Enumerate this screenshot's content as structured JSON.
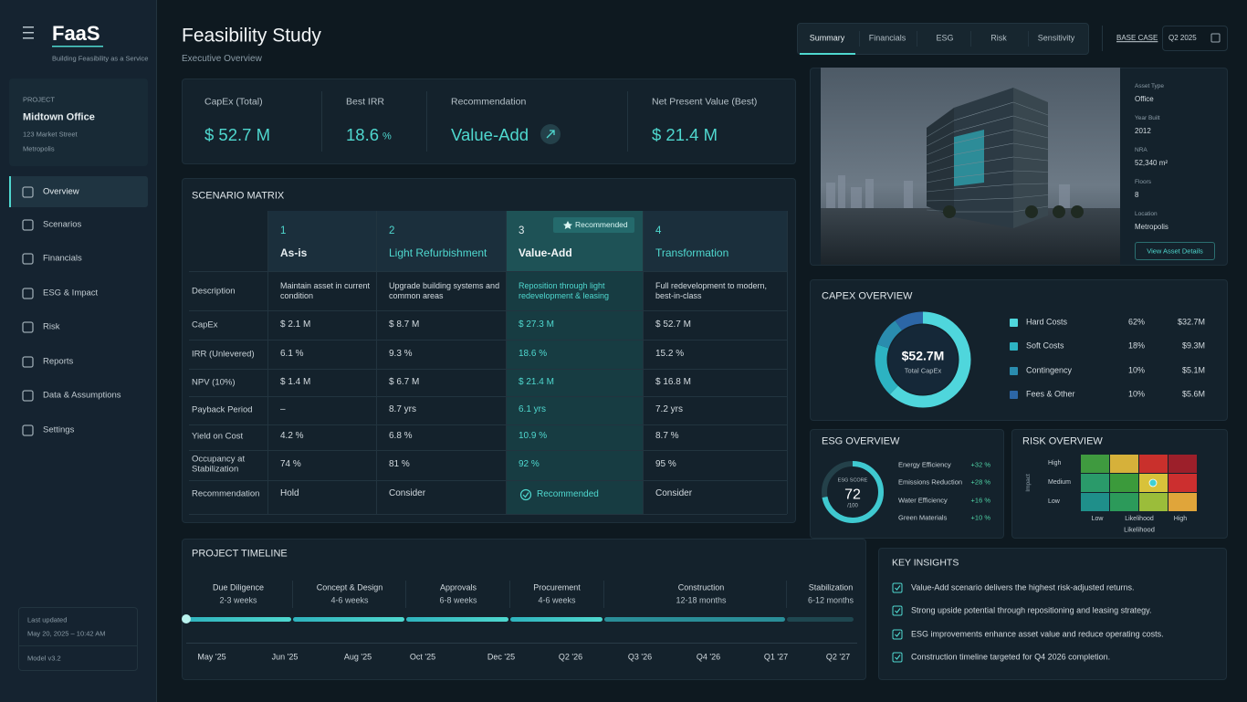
{
  "sidebar": {
    "logo": "FaaS",
    "tagline": "Building Feasibility as a Service",
    "project": {
      "label": "PROJECT",
      "name": "Midtown Office",
      "address": "123 Market Street",
      "city": "Metropolis"
    },
    "nav": [
      "Overview",
      "Scenarios",
      "Financials",
      "ESG & Impact",
      "Risk",
      "Reports",
      "Data & Assumptions",
      "Settings"
    ],
    "footer": {
      "label": "Last updated",
      "date": "May 20, 2025 – 10:42 AM",
      "version": "Model v3.2"
    }
  },
  "header": {
    "title": "Feasibility Study",
    "subtitle": "Executive Overview",
    "tabs": [
      "Summary",
      "Financials",
      "ESG",
      "Risk",
      "Sensitivity"
    ],
    "case": "BASE CASE",
    "period": "Q2 2025"
  },
  "kpis": [
    {
      "label": "CapEx (Total)",
      "value": "$ 52.7 M"
    },
    {
      "label": "Best IRR",
      "value": "18.6",
      "unit": "%"
    },
    {
      "label": "Recommendation",
      "value": "Value-Add"
    },
    {
      "label": "Net Present Value (Best)",
      "value": "$ 21.4 M"
    }
  ],
  "scenario_matrix": {
    "title": "SCENARIO MATRIX",
    "badge": "Recommended",
    "columns": [
      {
        "number": "1",
        "name": "As-is"
      },
      {
        "number": "2",
        "name": "Light Refurbishment"
      },
      {
        "number": "3",
        "name": "Value-Add"
      },
      {
        "number": "4",
        "name": "Transformation"
      }
    ],
    "rows": [
      {
        "label": "Description",
        "cells": [
          "Maintain asset in current condition",
          "Upgrade building systems and common areas",
          "Reposition through light redevelopment & leasing",
          "Full redevelopment to modern, best-in-class"
        ]
      },
      {
        "label": "CapEx",
        "cells": [
          "$ 2.1 M",
          "$ 8.7 M",
          "$ 27.3 M",
          "$ 52.7 M"
        ]
      },
      {
        "label": "IRR (Unlevered)",
        "cells": [
          "6.1 %",
          "9.3 %",
          "18.6 %",
          "15.2 %"
        ]
      },
      {
        "label": "NPV (10%)",
        "cells": [
          "$ 1.4 M",
          "$ 6.7 M",
          "$ 21.4 M",
          "$ 16.8 M"
        ]
      },
      {
        "label": "Payback Period",
        "cells": [
          "–",
          "8.7 yrs",
          "6.1 yrs",
          "7.2 yrs"
        ]
      },
      {
        "label": "Yield on Cost",
        "cells": [
          "4.2 %",
          "6.8 %",
          "10.9 %",
          "8.7 %"
        ]
      },
      {
        "label": "Occupancy at Stabilization",
        "cells": [
          "74 %",
          "81 %",
          "92 %",
          "95 %"
        ]
      },
      {
        "label": "Recommendation",
        "cells": [
          "Hold",
          "Consider",
          "Recommended",
          "Consider"
        ]
      }
    ]
  },
  "asset": {
    "details": [
      {
        "label": "Asset Type",
        "value": "Office"
      },
      {
        "label": "Year Built",
        "value": "2012"
      },
      {
        "label": "NRA",
        "value": "52,340 m²"
      },
      {
        "label": "Floors",
        "value": "8"
      },
      {
        "label": "Location",
        "value": "Metropolis"
      }
    ],
    "button": "View Asset Details"
  },
  "capex_overview": {
    "title": "CAPEX OVERVIEW",
    "total": "$52.7M",
    "total_label": "Total CapEx",
    "items": [
      {
        "name": "Hard Costs",
        "percent": 62,
        "percent_label": "62%",
        "amount": "$32.7M",
        "color": "#4fd6dc"
      },
      {
        "name": "Soft Costs",
        "percent": 18,
        "percent_label": "18%",
        "amount": "$9.3M",
        "color": "#2db3c2"
      },
      {
        "name": "Contingency",
        "percent": 10,
        "percent_label": "10%",
        "amount": "$5.1M",
        "color": "#2a8cae"
      },
      {
        "name": "Fees & Other",
        "percent": 10,
        "percent_label": "10%",
        "amount": "$5.6M",
        "color": "#2c66a6"
      }
    ]
  },
  "esg_overview": {
    "title": "ESG OVERVIEW",
    "score_label": "ESG SCORE",
    "score": 72,
    "score_max": 100,
    "score_max_label": "/100",
    "items": [
      {
        "name": "Energy Efficiency",
        "value": "+32 %"
      },
      {
        "name": "Emissions Reduction",
        "value": "+28 %"
      },
      {
        "name": "Water Efficiency",
        "value": "+16 %"
      },
      {
        "name": "Green Materials",
        "value": "+10 %"
      }
    ]
  },
  "risk_overview": {
    "title": "RISK OVERVIEW",
    "y_label": "Impact",
    "rows": [
      "High",
      "Medium",
      "Low"
    ],
    "x_labels": [
      "Low",
      "Likelihood",
      "High"
    ],
    "x_title": "Likelihood",
    "cells": [
      [
        "#3f9a3f",
        "#d6b13a",
        "#c9302c",
        "#9c1f2a"
      ],
      [
        "#2a9a6a",
        "#3b9a3b",
        "#d8c23a",
        "#cc2f2f"
      ],
      [
        "#1f8f8a",
        "#2c9a5a",
        "#9bbd3a",
        "#e0a53a"
      ]
    ]
  },
  "timeline": {
    "title": "PROJECT TIMELINE",
    "phases": [
      {
        "name": "Due Diligence",
        "duration": "2-3 weeks"
      },
      {
        "name": "Concept & Design",
        "duration": "4-6 weeks"
      },
      {
        "name": "Approvals",
        "duration": "6-8 weeks"
      },
      {
        "name": "Procurement",
        "duration": "4-6 weeks"
      },
      {
        "name": "Construction",
        "duration": "12-18 months"
      },
      {
        "name": "Stabilization",
        "duration": "6-12 months"
      }
    ],
    "dates": [
      "May '25",
      "Jun '25",
      "Aug '25",
      "Oct '25",
      "Dec '25",
      "Q2 '26",
      "Q3 '26",
      "Q4 '26",
      "Q1 '27",
      "Q2 '27"
    ]
  },
  "key_insights": {
    "title": "KEY INSIGHTS",
    "items": [
      "Value-Add scenario delivers the highest risk-adjusted returns.",
      "Strong upside potential through repositioning and leasing strategy.",
      "ESG improvements enhance asset value and reduce operating costs.",
      "Construction timeline targeted for Q4 2026 completion."
    ]
  }
}
